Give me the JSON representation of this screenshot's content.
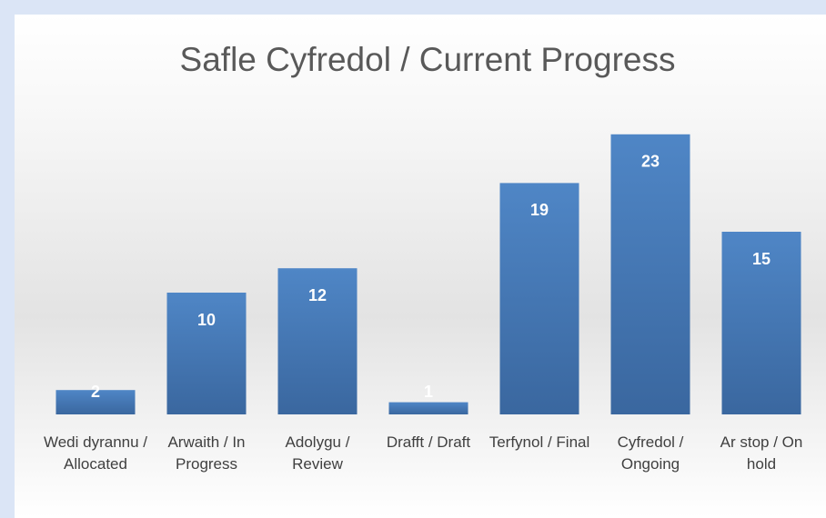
{
  "chart_data": {
    "type": "bar",
    "title": "Safle Cyfredol / Current Progress",
    "categories": [
      "Wedi dyrannu / Allocated",
      "Arwaith / In Progress",
      "Adolygu / Review",
      "Drafft / Draft",
      "Terfynol / Final",
      "Cyfredol / Ongoing",
      "Ar stop / On hold"
    ],
    "values": [
      2,
      10,
      12,
      1,
      19,
      23,
      15
    ],
    "color": "#4a7ebb",
    "ylim": [
      0,
      25
    ]
  }
}
